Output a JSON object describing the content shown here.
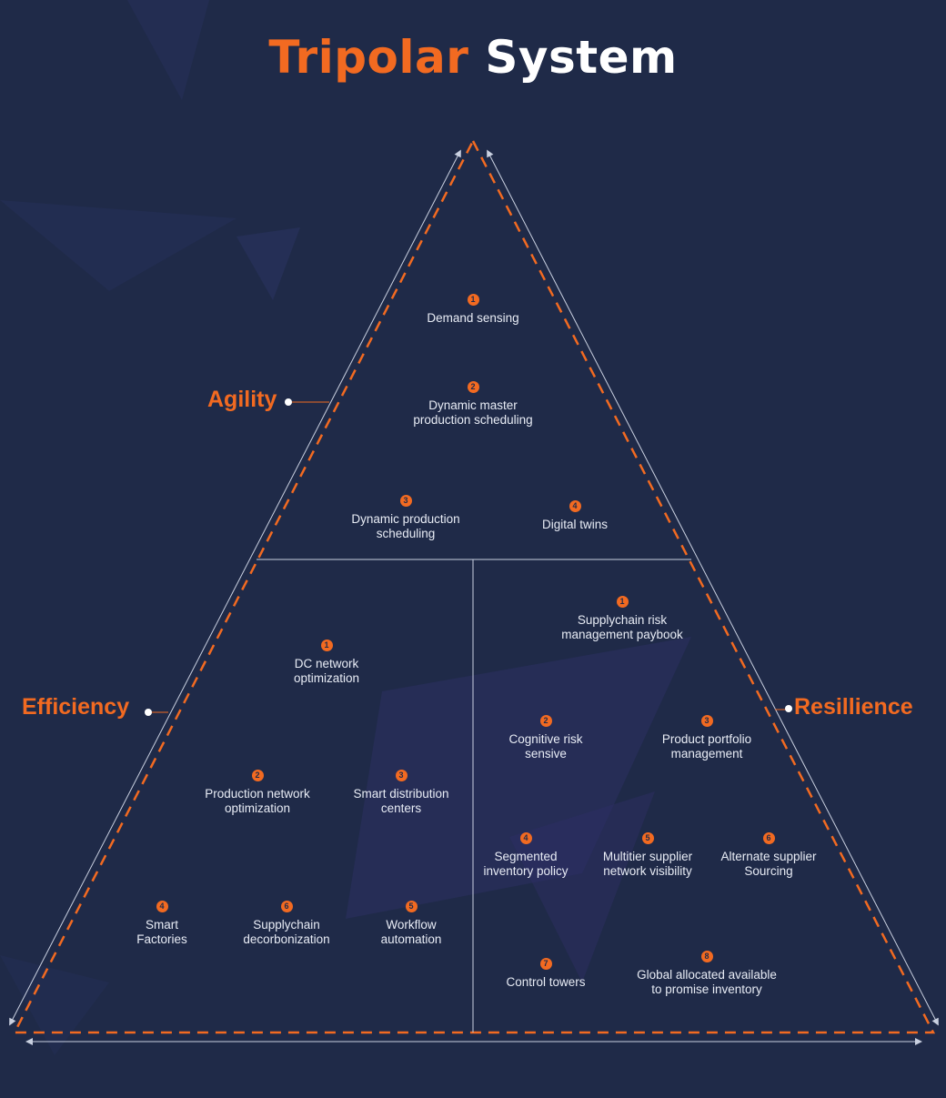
{
  "title": {
    "part1": "Tripolar",
    "part2": "System"
  },
  "colors": {
    "background": "#1f2a48",
    "accent": "#f26a21",
    "line": "#c9d0e0",
    "text": "#e8ecf5"
  },
  "poles": {
    "agility": "Agility",
    "efficiency": "Efficiency",
    "resilience": "Resillience"
  },
  "agility_items": [
    {
      "num": "1",
      "text": "Demand sensing"
    },
    {
      "num": "2",
      "text": "Dynamic master\nproduction scheduling"
    },
    {
      "num": "3",
      "text": "Dynamic production\nscheduling"
    },
    {
      "num": "4",
      "text": "Digital twins"
    }
  ],
  "efficiency_items": [
    {
      "num": "1",
      "text": "DC network\noptimization"
    },
    {
      "num": "2",
      "text": "Production network\noptimization"
    },
    {
      "num": "3",
      "text": "Smart distribution\ncenters"
    },
    {
      "num": "4",
      "text": "Smart\nFactories"
    },
    {
      "num": "6",
      "text": "Supplychain\ndecorbonization"
    },
    {
      "num": "5",
      "text": "Workflow\nautomation"
    }
  ],
  "resilience_items": [
    {
      "num": "1",
      "text": "Supplychain risk\nmanagement paybook"
    },
    {
      "num": "2",
      "text": "Cognitive risk\nsensive"
    },
    {
      "num": "3",
      "text": "Product portfolio\nmanagement"
    },
    {
      "num": "4",
      "text": "Segmented\ninventory policy"
    },
    {
      "num": "5",
      "text": "Multitier supplier\nnetwork visibility"
    },
    {
      "num": "6",
      "text": "Alternate supplier\nSourcing"
    },
    {
      "num": "7",
      "text": "Control towers"
    },
    {
      "num": "8",
      "text": "Global allocated available\nto promise inventory"
    }
  ]
}
